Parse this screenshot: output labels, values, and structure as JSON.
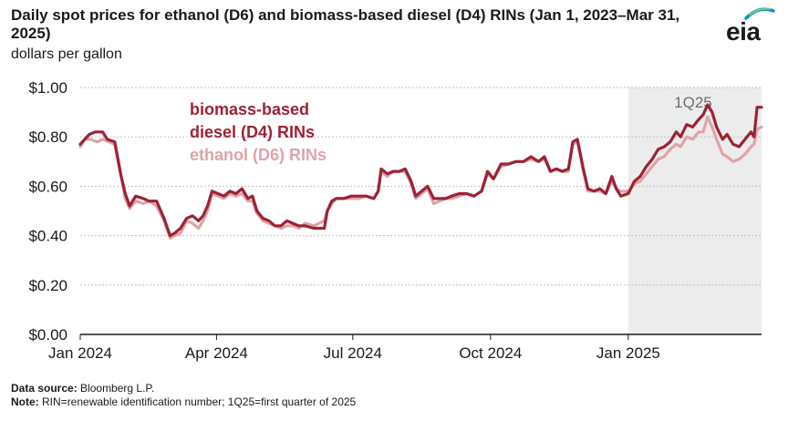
{
  "header": {
    "title": "Daily spot prices for ethanol (D6) and biomass-based diesel (D4) RINs (Jan 1, 2023–Mar 31, 2025)",
    "units": "dollars per gallon"
  },
  "logo": {
    "text": "eia",
    "icon": "eia-logo-icon",
    "accent": "#0096d7"
  },
  "footer": {
    "source_label": "Data source:",
    "source_text": "Bloomberg L.P.",
    "note_label": "Note:",
    "note_text": "RIN=renewable identification number; 1Q25=first quarter of 2025"
  },
  "chart_data": {
    "type": "line",
    "title": "Daily spot prices for ethanol (D6) and biomass-based diesel (D4) RINs (Jan 1, 2023–Mar 31, 2025)",
    "ylabel": "dollars per gallon",
    "xlabel": "",
    "ylim": [
      0,
      1.0
    ],
    "xlim": [
      "2024-01-01",
      "2025-03-31"
    ],
    "y_ticks": [
      0,
      0.2,
      0.4,
      0.6,
      0.8,
      1.0
    ],
    "y_tick_labels": [
      "$0.00",
      "$0.20",
      "$0.40",
      "$0.60",
      "$0.80",
      "$1.00"
    ],
    "x_ticks": [
      "2024-01-01",
      "2024-04-01",
      "2024-07-01",
      "2024-10-01",
      "2025-01-01"
    ],
    "x_tick_labels": [
      "Jan 2024",
      "Apr 2024",
      "Jul 2024",
      "Oct 2024",
      "Jan 2025"
    ],
    "grid": true,
    "shaded_region": {
      "label": "1Q25",
      "start": "2025-01-01",
      "end": "2025-03-31",
      "color": "#ececec"
    },
    "series": [
      {
        "name": "biomass-based diesel (D4) RINs",
        "color": "#9b2335",
        "points": [
          [
            "2024-01-01",
            0.77
          ],
          [
            "2024-01-04",
            0.79
          ],
          [
            "2024-01-07",
            0.81
          ],
          [
            "2024-01-11",
            0.82
          ],
          [
            "2024-01-16",
            0.82
          ],
          [
            "2024-01-19",
            0.79
          ],
          [
            "2024-01-24",
            0.78
          ],
          [
            "2024-01-28",
            0.65
          ],
          [
            "2024-01-31",
            0.57
          ],
          [
            "2024-02-03",
            0.52
          ],
          [
            "2024-02-07",
            0.56
          ],
          [
            "2024-02-12",
            0.55
          ],
          [
            "2024-02-16",
            0.54
          ],
          [
            "2024-02-21",
            0.54
          ],
          [
            "2024-02-26",
            0.47
          ],
          [
            "2024-03-01",
            0.4
          ],
          [
            "2024-03-04",
            0.41
          ],
          [
            "2024-03-08",
            0.43
          ],
          [
            "2024-03-12",
            0.47
          ],
          [
            "2024-03-16",
            0.48
          ],
          [
            "2024-03-20",
            0.46
          ],
          [
            "2024-03-23",
            0.48
          ],
          [
            "2024-03-26",
            0.52
          ],
          [
            "2024-03-29",
            0.58
          ],
          [
            "2024-04-02",
            0.57
          ],
          [
            "2024-04-06",
            0.56
          ],
          [
            "2024-04-10",
            0.58
          ],
          [
            "2024-04-14",
            0.57
          ],
          [
            "2024-04-18",
            0.59
          ],
          [
            "2024-04-22",
            0.55
          ],
          [
            "2024-04-25",
            0.56
          ],
          [
            "2024-04-28",
            0.5
          ],
          [
            "2024-05-02",
            0.47
          ],
          [
            "2024-05-06",
            0.46
          ],
          [
            "2024-05-10",
            0.44
          ],
          [
            "2024-05-14",
            0.44
          ],
          [
            "2024-05-18",
            0.46
          ],
          [
            "2024-05-22",
            0.45
          ],
          [
            "2024-05-26",
            0.44
          ],
          [
            "2024-05-30",
            0.44
          ],
          [
            "2024-06-05",
            0.43
          ],
          [
            "2024-06-12",
            0.43
          ],
          [
            "2024-06-14",
            0.5
          ],
          [
            "2024-06-17",
            0.54
          ],
          [
            "2024-06-20",
            0.55
          ],
          [
            "2024-06-25",
            0.55
          ],
          [
            "2024-06-30",
            0.56
          ],
          [
            "2024-07-05",
            0.56
          ],
          [
            "2024-07-10",
            0.56
          ],
          [
            "2024-07-15",
            0.55
          ],
          [
            "2024-07-18",
            0.58
          ],
          [
            "2024-07-20",
            0.67
          ],
          [
            "2024-07-24",
            0.65
          ],
          [
            "2024-07-28",
            0.66
          ],
          [
            "2024-08-01",
            0.66
          ],
          [
            "2024-08-05",
            0.67
          ],
          [
            "2024-08-09",
            0.62
          ],
          [
            "2024-08-12",
            0.56
          ],
          [
            "2024-08-16",
            0.58
          ],
          [
            "2024-08-20",
            0.6
          ],
          [
            "2024-08-24",
            0.55
          ],
          [
            "2024-08-28",
            0.55
          ],
          [
            "2024-09-01",
            0.55
          ],
          [
            "2024-09-05",
            0.56
          ],
          [
            "2024-09-10",
            0.57
          ],
          [
            "2024-09-15",
            0.57
          ],
          [
            "2024-09-20",
            0.56
          ],
          [
            "2024-09-25",
            0.58
          ],
          [
            "2024-09-29",
            0.66
          ],
          [
            "2024-10-03",
            0.63
          ],
          [
            "2024-10-08",
            0.69
          ],
          [
            "2024-10-13",
            0.69
          ],
          [
            "2024-10-18",
            0.7
          ],
          [
            "2024-10-23",
            0.7
          ],
          [
            "2024-10-28",
            0.72
          ],
          [
            "2024-11-02",
            0.7
          ],
          [
            "2024-11-06",
            0.72
          ],
          [
            "2024-11-10",
            0.66
          ],
          [
            "2024-11-14",
            0.67
          ],
          [
            "2024-11-18",
            0.66
          ],
          [
            "2024-11-22",
            0.67
          ],
          [
            "2024-11-25",
            0.78
          ],
          [
            "2024-11-28",
            0.79
          ],
          [
            "2024-12-02",
            0.67
          ],
          [
            "2024-12-05",
            0.59
          ],
          [
            "2024-12-09",
            0.58
          ],
          [
            "2024-12-13",
            0.59
          ],
          [
            "2024-12-17",
            0.57
          ],
          [
            "2024-12-21",
            0.64
          ],
          [
            "2024-12-24",
            0.59
          ],
          [
            "2024-12-27",
            0.56
          ],
          [
            "2025-01-01",
            0.57
          ],
          [
            "2025-01-05",
            0.62
          ],
          [
            "2025-01-09",
            0.64
          ],
          [
            "2025-01-13",
            0.68
          ],
          [
            "2025-01-17",
            0.71
          ],
          [
            "2025-01-21",
            0.75
          ],
          [
            "2025-01-25",
            0.76
          ],
          [
            "2025-01-29",
            0.78
          ],
          [
            "2025-02-02",
            0.82
          ],
          [
            "2025-02-05",
            0.8
          ],
          [
            "2025-02-09",
            0.85
          ],
          [
            "2025-02-13",
            0.84
          ],
          [
            "2025-02-17",
            0.87
          ],
          [
            "2025-02-20",
            0.89
          ],
          [
            "2025-02-23",
            0.93
          ],
          [
            "2025-02-26",
            0.9
          ],
          [
            "2025-03-01",
            0.84
          ],
          [
            "2025-03-05",
            0.79
          ],
          [
            "2025-03-08",
            0.81
          ],
          [
            "2025-03-12",
            0.77
          ],
          [
            "2025-03-16",
            0.76
          ],
          [
            "2025-03-20",
            0.79
          ],
          [
            "2025-03-24",
            0.82
          ],
          [
            "2025-03-26",
            0.8
          ],
          [
            "2025-03-28",
            0.92
          ],
          [
            "2025-03-31",
            0.92
          ]
        ]
      },
      {
        "name": "ethanol (D6) RINs",
        "color": "#e0a3a8",
        "points": [
          [
            "2024-01-01",
            0.76
          ],
          [
            "2024-01-04",
            0.79
          ],
          [
            "2024-01-08",
            0.79
          ],
          [
            "2024-01-12",
            0.78
          ],
          [
            "2024-01-16",
            0.79
          ],
          [
            "2024-01-20",
            0.78
          ],
          [
            "2024-01-24",
            0.77
          ],
          [
            "2024-01-28",
            0.65
          ],
          [
            "2024-01-31",
            0.55
          ],
          [
            "2024-02-03",
            0.51
          ],
          [
            "2024-02-07",
            0.54
          ],
          [
            "2024-02-12",
            0.53
          ],
          [
            "2024-02-16",
            0.54
          ],
          [
            "2024-02-21",
            0.52
          ],
          [
            "2024-02-26",
            0.46
          ],
          [
            "2024-03-01",
            0.39
          ],
          [
            "2024-03-04",
            0.4
          ],
          [
            "2024-03-08",
            0.41
          ],
          [
            "2024-03-12",
            0.46
          ],
          [
            "2024-03-16",
            0.45
          ],
          [
            "2024-03-20",
            0.43
          ],
          [
            "2024-03-23",
            0.46
          ],
          [
            "2024-03-26",
            0.5
          ],
          [
            "2024-03-29",
            0.57
          ],
          [
            "2024-04-02",
            0.56
          ],
          [
            "2024-04-06",
            0.55
          ],
          [
            "2024-04-10",
            0.57
          ],
          [
            "2024-04-14",
            0.56
          ],
          [
            "2024-04-18",
            0.57
          ],
          [
            "2024-04-22",
            0.54
          ],
          [
            "2024-04-25",
            0.54
          ],
          [
            "2024-04-28",
            0.49
          ],
          [
            "2024-05-02",
            0.46
          ],
          [
            "2024-05-06",
            0.45
          ],
          [
            "2024-05-10",
            0.44
          ],
          [
            "2024-05-14",
            0.43
          ],
          [
            "2024-05-18",
            0.44
          ],
          [
            "2024-05-22",
            0.44
          ],
          [
            "2024-05-26",
            0.43
          ],
          [
            "2024-05-30",
            0.45
          ],
          [
            "2024-06-05",
            0.44
          ],
          [
            "2024-06-12",
            0.46
          ],
          [
            "2024-06-14",
            0.5
          ],
          [
            "2024-06-17",
            0.53
          ],
          [
            "2024-06-20",
            0.55
          ],
          [
            "2024-06-25",
            0.55
          ],
          [
            "2024-06-30",
            0.55
          ],
          [
            "2024-07-05",
            0.55
          ],
          [
            "2024-07-10",
            0.56
          ],
          [
            "2024-07-15",
            0.55
          ],
          [
            "2024-07-18",
            0.58
          ],
          [
            "2024-07-20",
            0.66
          ],
          [
            "2024-07-24",
            0.64
          ],
          [
            "2024-07-28",
            0.66
          ],
          [
            "2024-08-01",
            0.66
          ],
          [
            "2024-08-05",
            0.66
          ],
          [
            "2024-08-09",
            0.61
          ],
          [
            "2024-08-12",
            0.55
          ],
          [
            "2024-08-16",
            0.57
          ],
          [
            "2024-08-20",
            0.59
          ],
          [
            "2024-08-24",
            0.53
          ],
          [
            "2024-08-28",
            0.54
          ],
          [
            "2024-09-01",
            0.55
          ],
          [
            "2024-09-05",
            0.55
          ],
          [
            "2024-09-10",
            0.56
          ],
          [
            "2024-09-15",
            0.57
          ],
          [
            "2024-09-20",
            0.56
          ],
          [
            "2024-09-25",
            0.58
          ],
          [
            "2024-09-29",
            0.65
          ],
          [
            "2024-10-03",
            0.63
          ],
          [
            "2024-10-08",
            0.68
          ],
          [
            "2024-10-13",
            0.69
          ],
          [
            "2024-10-18",
            0.7
          ],
          [
            "2024-10-23",
            0.7
          ],
          [
            "2024-10-28",
            0.71
          ],
          [
            "2024-11-02",
            0.7
          ],
          [
            "2024-11-06",
            0.71
          ],
          [
            "2024-11-10",
            0.66
          ],
          [
            "2024-11-14",
            0.67
          ],
          [
            "2024-11-18",
            0.66
          ],
          [
            "2024-11-22",
            0.66
          ],
          [
            "2024-11-25",
            0.77
          ],
          [
            "2024-11-28",
            0.78
          ],
          [
            "2024-12-02",
            0.66
          ],
          [
            "2024-12-05",
            0.58
          ],
          [
            "2024-12-09",
            0.58
          ],
          [
            "2024-12-13",
            0.58
          ],
          [
            "2024-12-17",
            0.57
          ],
          [
            "2024-12-21",
            0.62
          ],
          [
            "2024-12-24",
            0.59
          ],
          [
            "2024-12-27",
            0.58
          ],
          [
            "2025-01-01",
            0.58
          ],
          [
            "2025-01-05",
            0.61
          ],
          [
            "2025-01-09",
            0.62
          ],
          [
            "2025-01-13",
            0.65
          ],
          [
            "2025-01-17",
            0.68
          ],
          [
            "2025-01-21",
            0.71
          ],
          [
            "2025-01-25",
            0.72
          ],
          [
            "2025-01-29",
            0.75
          ],
          [
            "2025-02-02",
            0.77
          ],
          [
            "2025-02-05",
            0.76
          ],
          [
            "2025-02-09",
            0.8
          ],
          [
            "2025-02-13",
            0.79
          ],
          [
            "2025-02-17",
            0.82
          ],
          [
            "2025-02-20",
            0.82
          ],
          [
            "2025-02-23",
            0.88
          ],
          [
            "2025-02-26",
            0.84
          ],
          [
            "2025-03-01",
            0.79
          ],
          [
            "2025-03-05",
            0.73
          ],
          [
            "2025-03-08",
            0.72
          ],
          [
            "2025-03-12",
            0.7
          ],
          [
            "2025-03-16",
            0.71
          ],
          [
            "2025-03-20",
            0.73
          ],
          [
            "2025-03-24",
            0.76
          ],
          [
            "2025-03-26",
            0.77
          ],
          [
            "2025-03-28",
            0.83
          ],
          [
            "2025-03-31",
            0.84
          ]
        ]
      }
    ]
  }
}
